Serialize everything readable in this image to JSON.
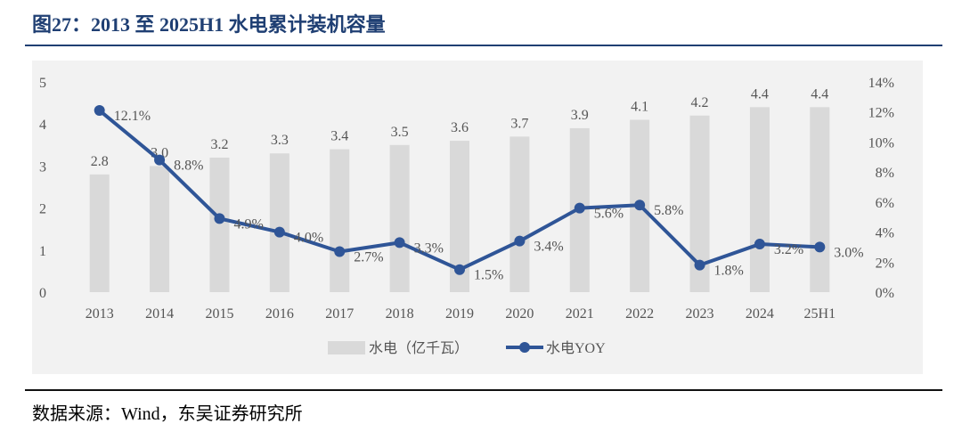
{
  "header": {
    "title": "图27：2013 至 2025H1 水电累计装机容量"
  },
  "footer": {
    "source": "数据来源：Wind，东吴证券研究所"
  },
  "colors": {
    "bar": "#d9d9d9",
    "line": "#2f5597",
    "title": "#1f3f73"
  },
  "chart_data": {
    "type": "bar+line",
    "categories": [
      "2013",
      "2014",
      "2015",
      "2016",
      "2017",
      "2018",
      "2019",
      "2020",
      "2021",
      "2022",
      "2023",
      "2024",
      "25H1"
    ],
    "series": [
      {
        "name": "水电（亿千瓦）",
        "type": "bar",
        "axis": "left",
        "values": [
          2.8,
          3.0,
          3.2,
          3.3,
          3.4,
          3.5,
          3.6,
          3.7,
          3.9,
          4.1,
          4.2,
          4.4,
          4.4
        ],
        "labels": [
          "2.8",
          "3.0",
          "3.2",
          "3.3",
          "3.4",
          "3.5",
          "3.6",
          "3.7",
          "3.9",
          "4.1",
          "4.2",
          "4.4",
          "4.4"
        ]
      },
      {
        "name": "水电YOY",
        "type": "line",
        "axis": "right",
        "values": [
          12.1,
          8.8,
          4.9,
          4.0,
          2.7,
          3.3,
          1.5,
          3.4,
          5.6,
          5.8,
          1.8,
          3.2,
          3.0
        ],
        "labels": [
          "12.1%",
          "8.8%",
          "4.9%",
          "4.0%",
          "2.7%",
          "3.3%",
          "1.5%",
          "3.4%",
          "5.6%",
          "5.8%",
          "1.8%",
          "3.2%",
          "3.0%"
        ]
      }
    ],
    "y_left": {
      "ylim": [
        0,
        5
      ],
      "ticks": [
        "0",
        "1",
        "2",
        "3",
        "4",
        "5"
      ]
    },
    "y_right": {
      "ylim": [
        0,
        14
      ],
      "ticks": [
        "0%",
        "2%",
        "4%",
        "6%",
        "8%",
        "10%",
        "12%",
        "14%"
      ]
    },
    "grid": false,
    "legend": "bottom"
  }
}
